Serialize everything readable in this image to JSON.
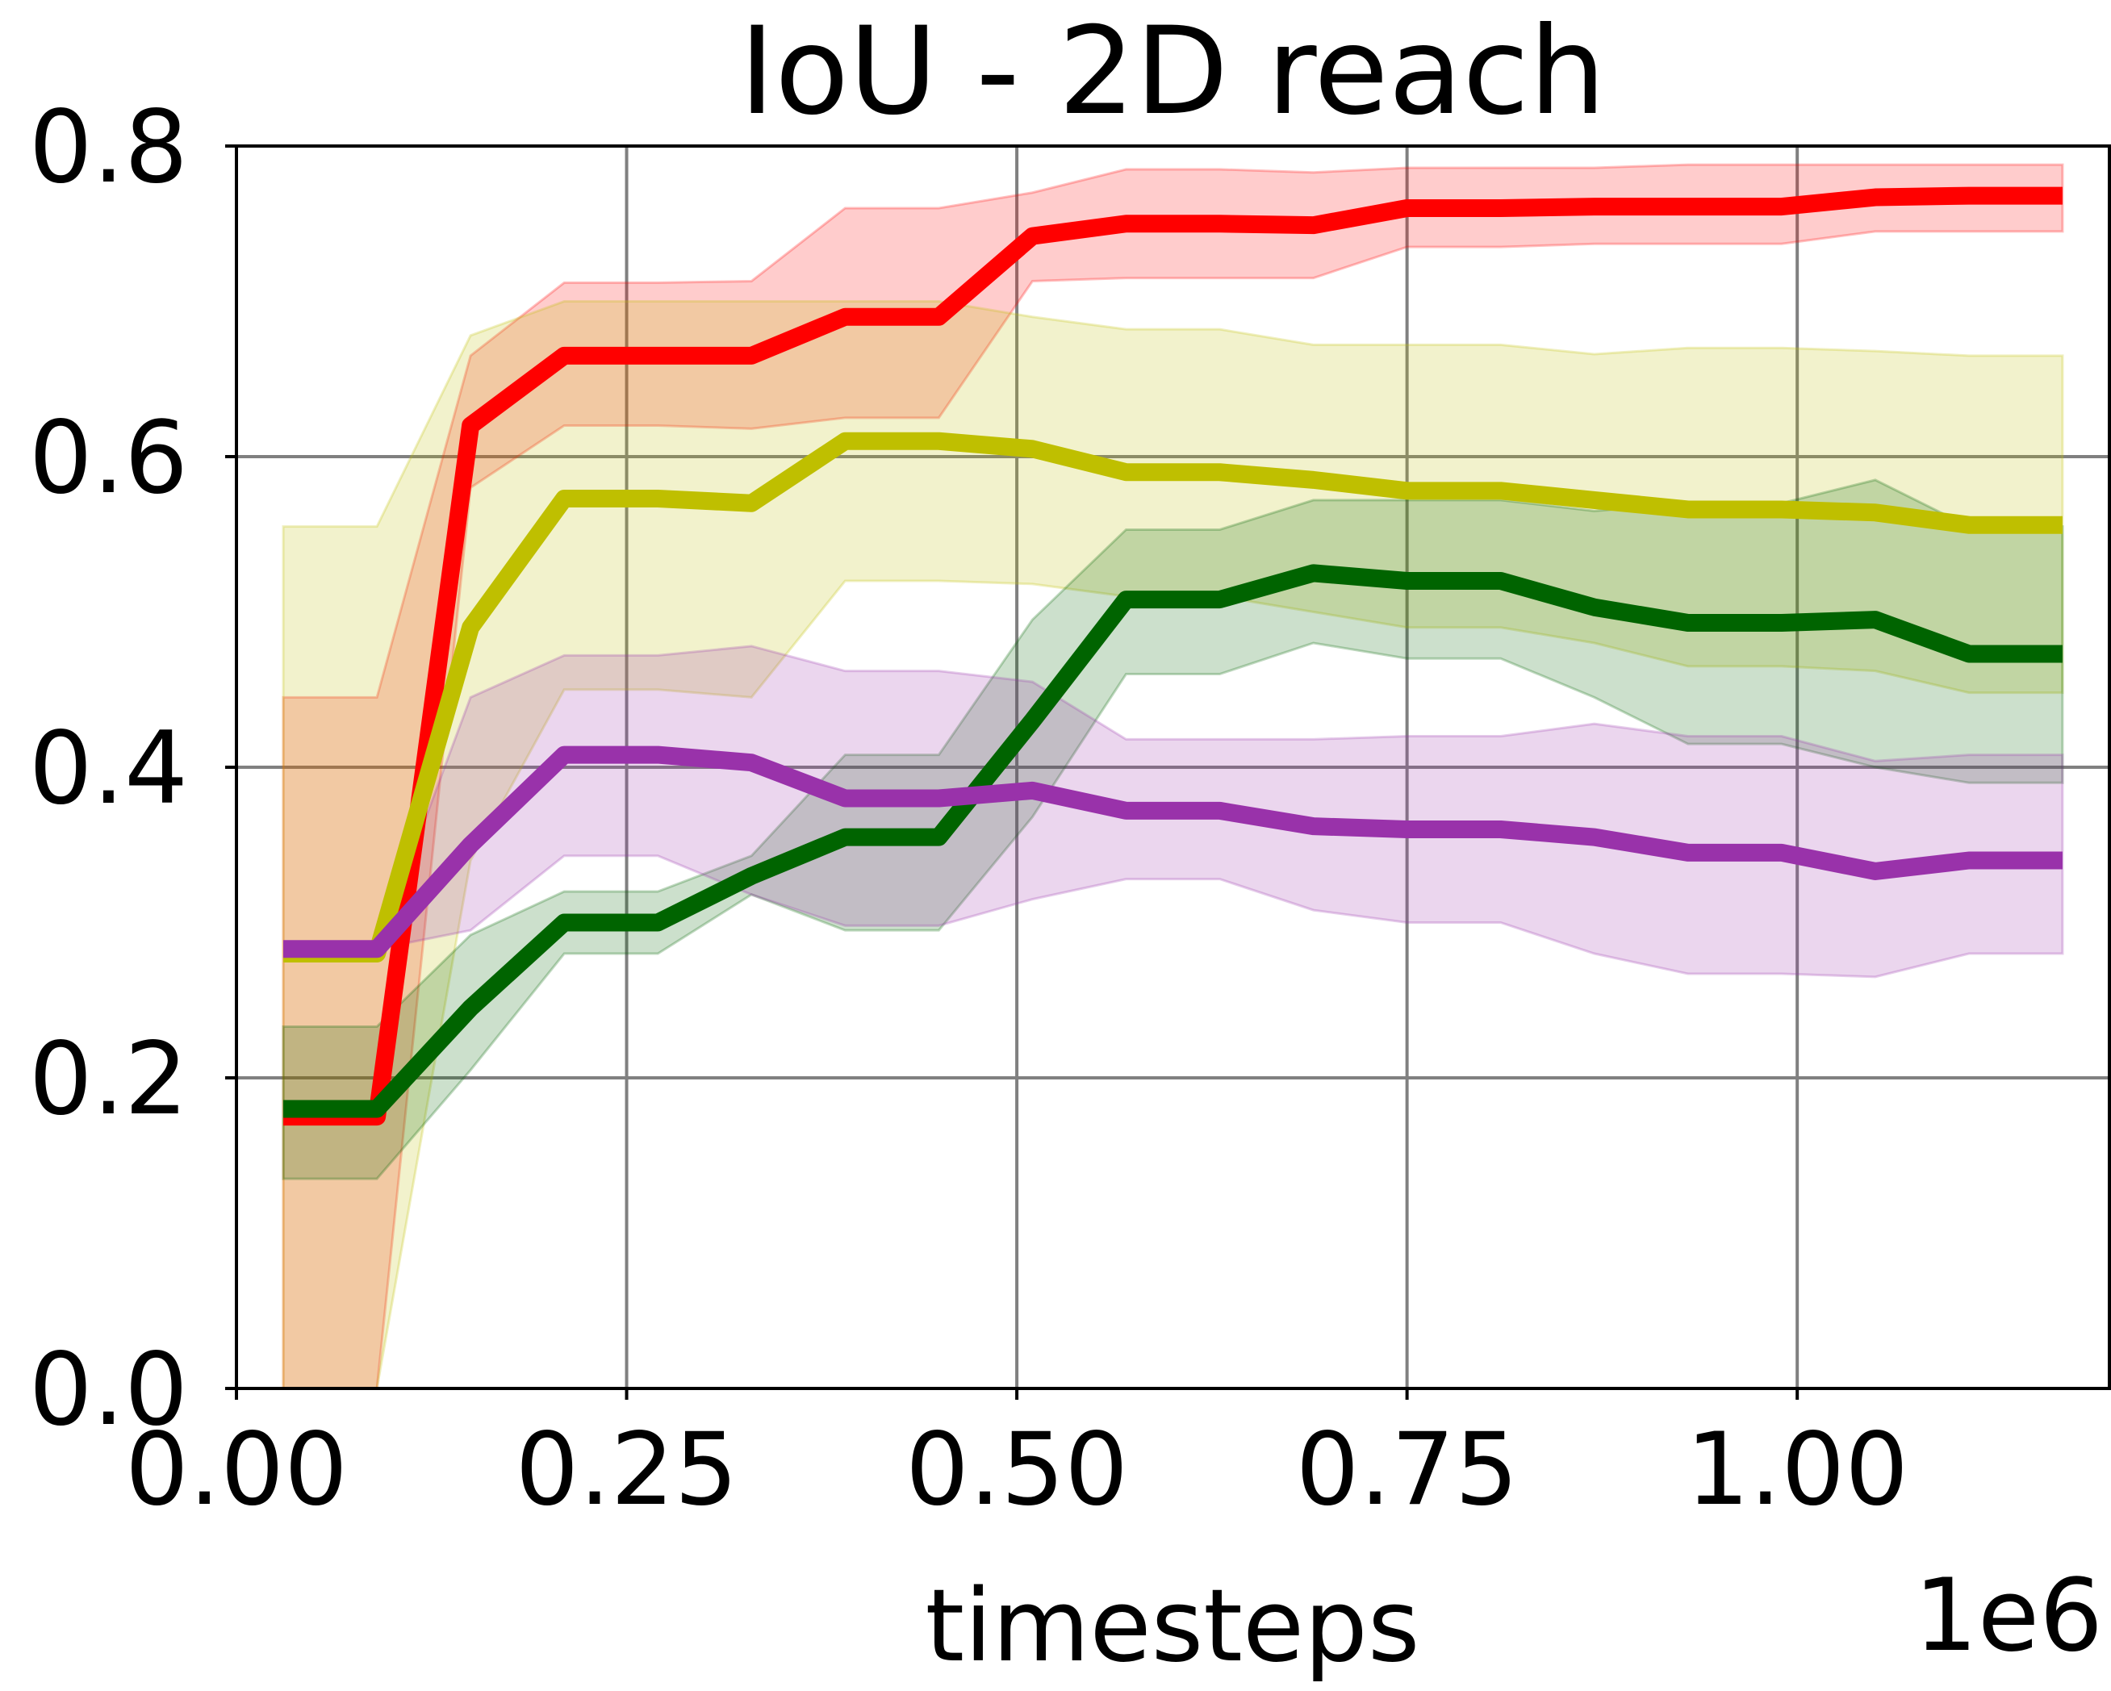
{
  "chart_data": {
    "type": "line",
    "title": "IoU - 2D reach",
    "xlabel": "timesteps",
    "ylabel": "",
    "x_offset_label": "1e6",
    "xlim": [
      0.0,
      1.2
    ],
    "ylim": [
      0.0,
      0.8
    ],
    "xticks": [
      "0.00",
      "0.25",
      "0.50",
      "0.75",
      "1.00"
    ],
    "yticks": [
      "0.0",
      "0.2",
      "0.4",
      "0.6",
      "0.8"
    ],
    "grid": true,
    "x": [
      0.03,
      0.09,
      0.15,
      0.21,
      0.27,
      0.33,
      0.39,
      0.45,
      0.51,
      0.57,
      0.63,
      0.69,
      0.75,
      0.81,
      0.87,
      0.93,
      0.99,
      1.05,
      1.11,
      1.17
    ],
    "series": [
      {
        "color": "#ff0000",
        "values": [
          0.175,
          0.175,
          0.62,
          0.665,
          0.665,
          0.665,
          0.69,
          0.69,
          0.742,
          0.75,
          0.75,
          0.749,
          0.76,
          0.76,
          0.761,
          0.761,
          0.761,
          0.767,
          0.768,
          0.768
        ],
        "lower": [
          0.0,
          0.0,
          0.58,
          0.62,
          0.62,
          0.618,
          0.625,
          0.625,
          0.713,
          0.715,
          0.715,
          0.715,
          0.735,
          0.735,
          0.737,
          0.737,
          0.737,
          0.745,
          0.745,
          0.745
        ],
        "upper": [
          0.445,
          0.445,
          0.665,
          0.712,
          0.712,
          0.713,
          0.76,
          0.76,
          0.77,
          0.785,
          0.785,
          0.783,
          0.786,
          0.786,
          0.786,
          0.788,
          0.788,
          0.788,
          0.788,
          0.788
        ]
      },
      {
        "color": "#bfbf00",
        "values": [
          0.28,
          0.28,
          0.49,
          0.573,
          0.573,
          0.57,
          0.61,
          0.61,
          0.605,
          0.59,
          0.59,
          0.585,
          0.578,
          0.578,
          0.572,
          0.566,
          0.566,
          0.564,
          0.556,
          0.556
        ],
        "lower": [
          0.0,
          0.0,
          0.34,
          0.45,
          0.45,
          0.445,
          0.52,
          0.52,
          0.518,
          0.51,
          0.51,
          0.5,
          0.49,
          0.49,
          0.48,
          0.465,
          0.465,
          0.462,
          0.448,
          0.448
        ],
        "upper": [
          0.555,
          0.555,
          0.678,
          0.7,
          0.7,
          0.7,
          0.7,
          0.7,
          0.69,
          0.682,
          0.682,
          0.672,
          0.672,
          0.672,
          0.666,
          0.67,
          0.67,
          0.668,
          0.665,
          0.665
        ]
      },
      {
        "color": "#006400",
        "values": [
          0.18,
          0.18,
          0.245,
          0.3,
          0.3,
          0.33,
          0.355,
          0.355,
          0.43,
          0.508,
          0.508,
          0.525,
          0.52,
          0.52,
          0.503,
          0.493,
          0.493,
          0.495,
          0.473,
          0.473
        ],
        "lower": [
          0.135,
          0.135,
          0.205,
          0.28,
          0.28,
          0.318,
          0.295,
          0.295,
          0.368,
          0.46,
          0.46,
          0.48,
          0.47,
          0.47,
          0.445,
          0.415,
          0.415,
          0.4,
          0.39,
          0.39
        ],
        "upper": [
          0.233,
          0.233,
          0.292,
          0.32,
          0.32,
          0.343,
          0.408,
          0.408,
          0.495,
          0.553,
          0.553,
          0.572,
          0.572,
          0.572,
          0.565,
          0.57,
          0.57,
          0.585,
          0.555,
          0.555
        ]
      },
      {
        "color": "#9932aa",
        "values": [
          0.283,
          0.283,
          0.35,
          0.408,
          0.408,
          0.403,
          0.38,
          0.38,
          0.385,
          0.372,
          0.372,
          0.362,
          0.36,
          0.36,
          0.355,
          0.345,
          0.345,
          0.333,
          0.34,
          0.34
        ],
        "lower": [
          0.283,
          0.283,
          0.295,
          0.343,
          0.343,
          0.318,
          0.298,
          0.298,
          0.315,
          0.328,
          0.328,
          0.308,
          0.3,
          0.3,
          0.28,
          0.267,
          0.267,
          0.265,
          0.28,
          0.28
        ],
        "upper": [
          0.283,
          0.283,
          0.445,
          0.472,
          0.472,
          0.478,
          0.462,
          0.462,
          0.455,
          0.418,
          0.418,
          0.418,
          0.42,
          0.42,
          0.428,
          0.42,
          0.42,
          0.404,
          0.408,
          0.408
        ]
      }
    ]
  }
}
